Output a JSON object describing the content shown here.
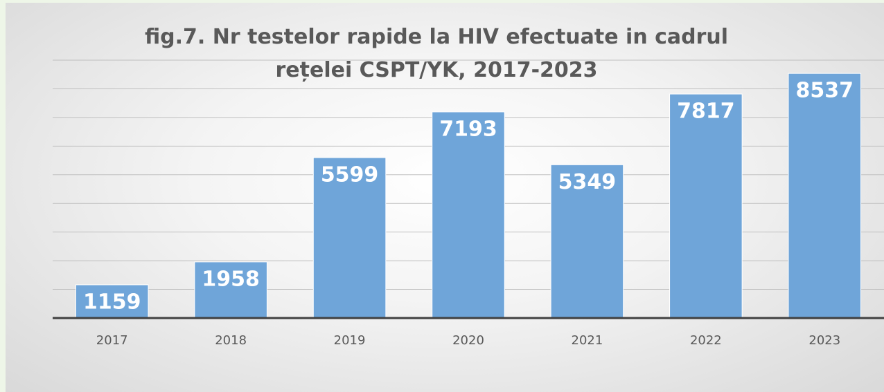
{
  "chart_data": {
    "type": "bar",
    "title": "fig.7. Nr testelor rapide la HIV efectuate in cadrul rețelei CSPT/YK, 2017-2023",
    "categories": [
      "2017",
      "2018",
      "2019",
      "2020",
      "2021",
      "2022",
      "2023"
    ],
    "values": [
      1159,
      1958,
      5599,
      7193,
      5349,
      7817,
      8537
    ],
    "color": "#6fa5d9",
    "ylim": [
      0,
      9000
    ],
    "yticks": [
      0,
      1000,
      2000,
      3000,
      4000,
      5000,
      6000,
      7000,
      8000,
      9000
    ],
    "grid": true
  }
}
